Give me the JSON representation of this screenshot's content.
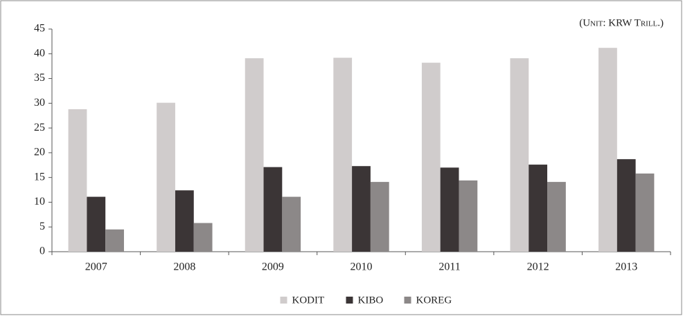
{
  "chart_data": {
    "type": "bar",
    "annotation": "(Unit: KRW Trill.)",
    "categories": [
      "2007",
      "2008",
      "2009",
      "2010",
      "2011",
      "2012",
      "2013"
    ],
    "series": [
      {
        "name": "KODIT",
        "color": "#d0cccc",
        "values": [
          28.8,
          30.1,
          39.1,
          39.2,
          38.2,
          39.1,
          41.2
        ]
      },
      {
        "name": "KIBO",
        "color": "#3b3536",
        "values": [
          11.1,
          12.4,
          17.1,
          17.3,
          17.0,
          17.6,
          18.7
        ]
      },
      {
        "name": "KOREG",
        "color": "#8c8888",
        "values": [
          4.5,
          5.8,
          11.1,
          14.1,
          14.4,
          14.1,
          15.8
        ]
      }
    ],
    "ylim": [
      0,
      45
    ],
    "yticks": [
      0,
      5,
      10,
      15,
      20,
      25,
      30,
      35,
      40,
      45
    ],
    "legend": "bottom"
  }
}
